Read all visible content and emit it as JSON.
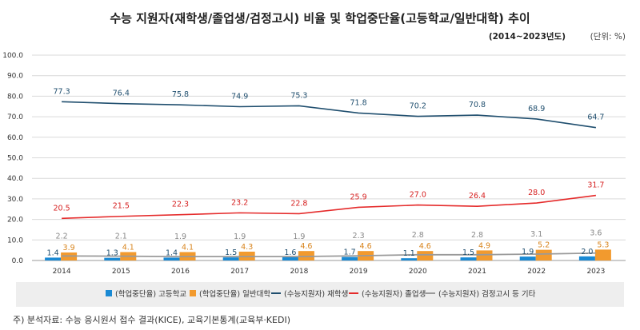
{
  "header": {
    "title": "수능 지원자(재학생/졸업생/검정고시) 비율  및 학업중단율(고등학교/일반대학) 추이",
    "period": "(2014~2023년도)",
    "unit": "(단위: %)"
  },
  "footer": {
    "source": "주) 분석자료: 수능 응시원서 접수 결과(KICE), 교육기본통계(교육부·KEDI)"
  },
  "colors": {
    "bar_highschool": "#1a8ad4",
    "bar_university": "#f29a2e",
    "line_current": "#1f4e6e",
    "line_graduate": "#e52b2b",
    "line_ged": "#9a9a9a",
    "grid": "#d9d9d9",
    "legend_bg": "#eeeeee"
  },
  "chart_data": {
    "type": "bar",
    "title": "수능 지원자(재학생/졸업생/검정고시) 비율  및 학업중단율(고등학교/일반대학) 추이",
    "categories": [
      "2014",
      "2015",
      "2016",
      "2017",
      "2018",
      "2019",
      "2020",
      "2021",
      "2022",
      "2023"
    ],
    "ylim": [
      0,
      100
    ],
    "yticks": [
      "0.0",
      "10.0",
      "20.0",
      "30.0",
      "40.0",
      "50.0",
      "60.0",
      "70.0",
      "80.0",
      "90.0",
      "100.0"
    ],
    "grid": true,
    "legend_position": "bottom",
    "bar_series": [
      {
        "name": "(학업중단율) 고등학교",
        "values": [
          1.4,
          1.3,
          1.4,
          1.5,
          1.6,
          1.7,
          1.1,
          1.5,
          1.9,
          2.0
        ],
        "labels": [
          "1.4",
          "1.3",
          "1.4",
          "1.5",
          "1.6",
          "1.7",
          "1.1",
          "1.5",
          "1.9",
          "2.0"
        ]
      },
      {
        "name": "(학업중단율) 일반대학",
        "values": [
          3.9,
          4.1,
          4.1,
          4.3,
          4.6,
          4.6,
          4.6,
          4.9,
          5.2,
          5.3
        ],
        "labels": [
          "3.9",
          "4.1",
          "4.1",
          "4.3",
          "4.6",
          "4.6",
          "4.6",
          "4.9",
          "5.2",
          "5.3"
        ]
      }
    ],
    "line_series": [
      {
        "name": "(수능지원자) 재학생",
        "values": [
          77.3,
          76.4,
          75.8,
          74.9,
          75.3,
          71.8,
          70.2,
          70.8,
          68.9,
          64.7
        ],
        "labels": [
          "77.3",
          "76.4",
          "75.8",
          "74.9",
          "75.3",
          "71.8",
          "70.2",
          "70.8",
          "68.9",
          "64.7"
        ]
      },
      {
        "name": "(수능지원자) 졸업생",
        "values": [
          20.5,
          21.5,
          22.3,
          23.2,
          22.8,
          25.9,
          27.0,
          26.4,
          28.0,
          31.7
        ],
        "labels": [
          "20.5",
          "21.5",
          "22.3",
          "23.2",
          "22.8",
          "25.9",
          "27.0",
          "26.4",
          "28.0",
          "31.7"
        ]
      },
      {
        "name": "(수능지원자) 검정고시 등 기타",
        "values": [
          2.2,
          2.1,
          1.9,
          1.9,
          1.9,
          2.3,
          2.8,
          2.8,
          3.1,
          3.6
        ],
        "labels": [
          "2.2",
          "2.1",
          "1.9",
          "1.9",
          "1.9",
          "2.3",
          "2.8",
          "2.8",
          "3.1",
          "3.6"
        ]
      }
    ]
  }
}
